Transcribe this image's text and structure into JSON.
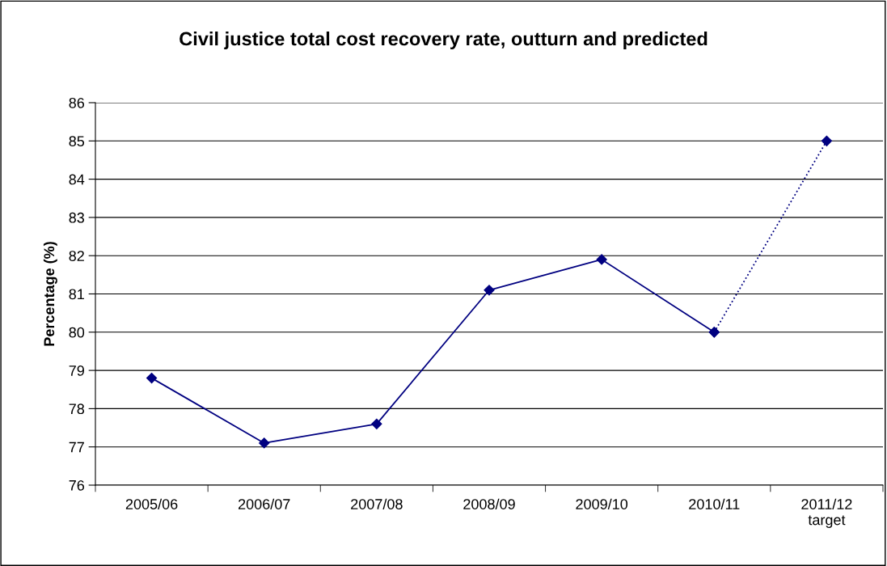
{
  "chart_data": {
    "type": "line",
    "title": "Civil justice total cost recovery rate, outturn and predicted",
    "ylabel": "Percentage (%)",
    "categories": [
      "2005/06",
      "2006/07",
      "2007/08",
      "2008/09",
      "2009/10",
      "2010/11",
      "2011/12\ntarget"
    ],
    "series": [
      {
        "color": "#000080",
        "line_style": "solid",
        "values": [
          78.8,
          77.1,
          77.6,
          81.1,
          81.9,
          80.0,
          null
        ]
      },
      {
        "color": "#000080",
        "line_style": "dotted",
        "values": [
          null,
          null,
          null,
          null,
          null,
          80.0,
          85.0
        ]
      }
    ],
    "marker": "diamond",
    "ylim": [
      76,
      86
    ],
    "yticks": [
      76,
      77,
      78,
      79,
      80,
      81,
      82,
      83,
      84,
      85,
      86
    ],
    "grid": "y"
  }
}
